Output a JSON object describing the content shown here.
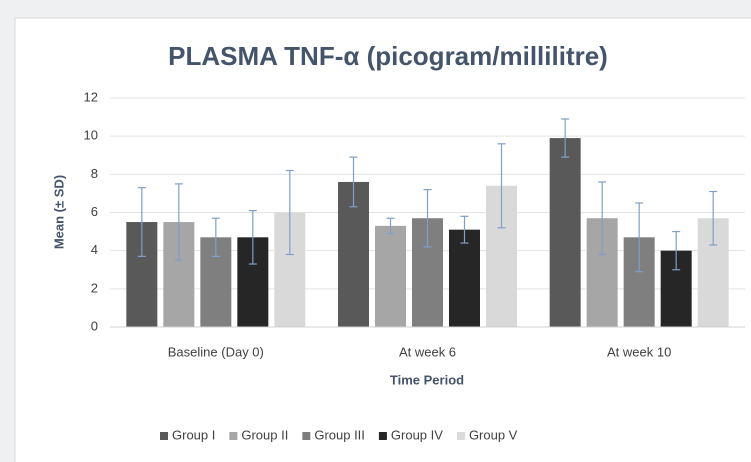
{
  "chart_data": {
    "type": "bar",
    "title": "PLASMA  TNF-α (picogram/millilitre)",
    "x_label": "Time  Period",
    "y_label": "Mean (± SD)",
    "categories": [
      "Baseline (Day 0)",
      "At week 6",
      "At week 10"
    ],
    "series": [
      {
        "name": "Group I",
        "color": "#595959",
        "values": [
          5.5,
          7.6,
          9.9
        ],
        "errors": [
          1.8,
          1.3,
          1.0
        ]
      },
      {
        "name": "Group II",
        "color": "#a6a6a6",
        "values": [
          5.5,
          5.3,
          5.7
        ],
        "errors": [
          2.0,
          0.4,
          1.9
        ]
      },
      {
        "name": "Group III",
        "color": "#7f7f7f",
        "values": [
          4.7,
          5.7,
          4.7
        ],
        "errors": [
          1.0,
          1.5,
          1.8
        ]
      },
      {
        "name": "Group IV",
        "color": "#262626",
        "values": [
          4.7,
          5.1,
          4.0
        ],
        "errors": [
          1.4,
          0.7,
          1.0
        ]
      },
      {
        "name": "Group V",
        "color": "#d9d9d9",
        "values": [
          6.0,
          7.4,
          5.7
        ],
        "errors": [
          2.2,
          2.2,
          1.4
        ]
      }
    ],
    "error_color": "#7f9fc8",
    "ylim": [
      0,
      12
    ],
    "yticks": [
      0,
      2,
      4,
      6,
      8,
      10,
      12
    ],
    "grid": true,
    "legend": "bottom"
  }
}
